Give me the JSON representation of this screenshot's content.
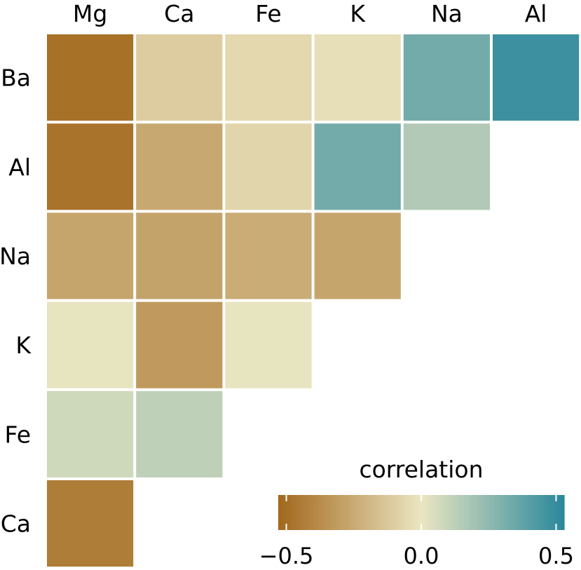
{
  "chart_data": {
    "type": "heatmap",
    "title": "",
    "columns": [
      "Mg",
      "Ca",
      "Fe",
      "K",
      "Na",
      "Al"
    ],
    "rows": [
      "Ba",
      "Al",
      "Na",
      "K",
      "Fe",
      "Ca"
    ],
    "cells": [
      {
        "row": "Ba",
        "col": "Mg",
        "value": -0.49
      },
      {
        "row": "Ba",
        "col": "Ca",
        "value": -0.11
      },
      {
        "row": "Ba",
        "col": "Fe",
        "value": -0.06
      },
      {
        "row": "Ba",
        "col": "K",
        "value": -0.03
      },
      {
        "row": "Ba",
        "col": "Na",
        "value": 0.33
      },
      {
        "row": "Ba",
        "col": "Al",
        "value": 0.48
      },
      {
        "row": "Al",
        "col": "Mg",
        "value": -0.48
      },
      {
        "row": "Al",
        "col": "Ca",
        "value": -0.26
      },
      {
        "row": "Al",
        "col": "Fe",
        "value": -0.07
      },
      {
        "row": "Al",
        "col": "K",
        "value": 0.33
      },
      {
        "row": "Al",
        "col": "Na",
        "value": 0.16
      },
      {
        "row": "Na",
        "col": "Mg",
        "value": -0.27
      },
      {
        "row": "Na",
        "col": "Ca",
        "value": -0.28
      },
      {
        "row": "Na",
        "col": "Fe",
        "value": -0.24
      },
      {
        "row": "Na",
        "col": "K",
        "value": -0.27
      },
      {
        "row": "K",
        "col": "Mg",
        "value": 0.01
      },
      {
        "row": "K",
        "col": "Ca",
        "value": -0.32
      },
      {
        "row": "K",
        "col": "Fe",
        "value": 0.01
      },
      {
        "row": "Fe",
        "col": "Mg",
        "value": 0.08
      },
      {
        "row": "Fe",
        "col": "Ca",
        "value": 0.12
      },
      {
        "row": "Ca",
        "col": "Mg",
        "value": -0.44
      }
    ],
    "legend": {
      "title": "correlation",
      "placement": "bottom-right",
      "range": [
        -0.53,
        0.53
      ],
      "ticks": [
        -0.5,
        0.0,
        0.5
      ],
      "tick_labels": [
        "−0.5",
        "0.0",
        "0.5"
      ]
    },
    "colors": {
      "low": "#a2671c",
      "mid": "#ebe6c1",
      "high": "#2a879c"
    }
  }
}
